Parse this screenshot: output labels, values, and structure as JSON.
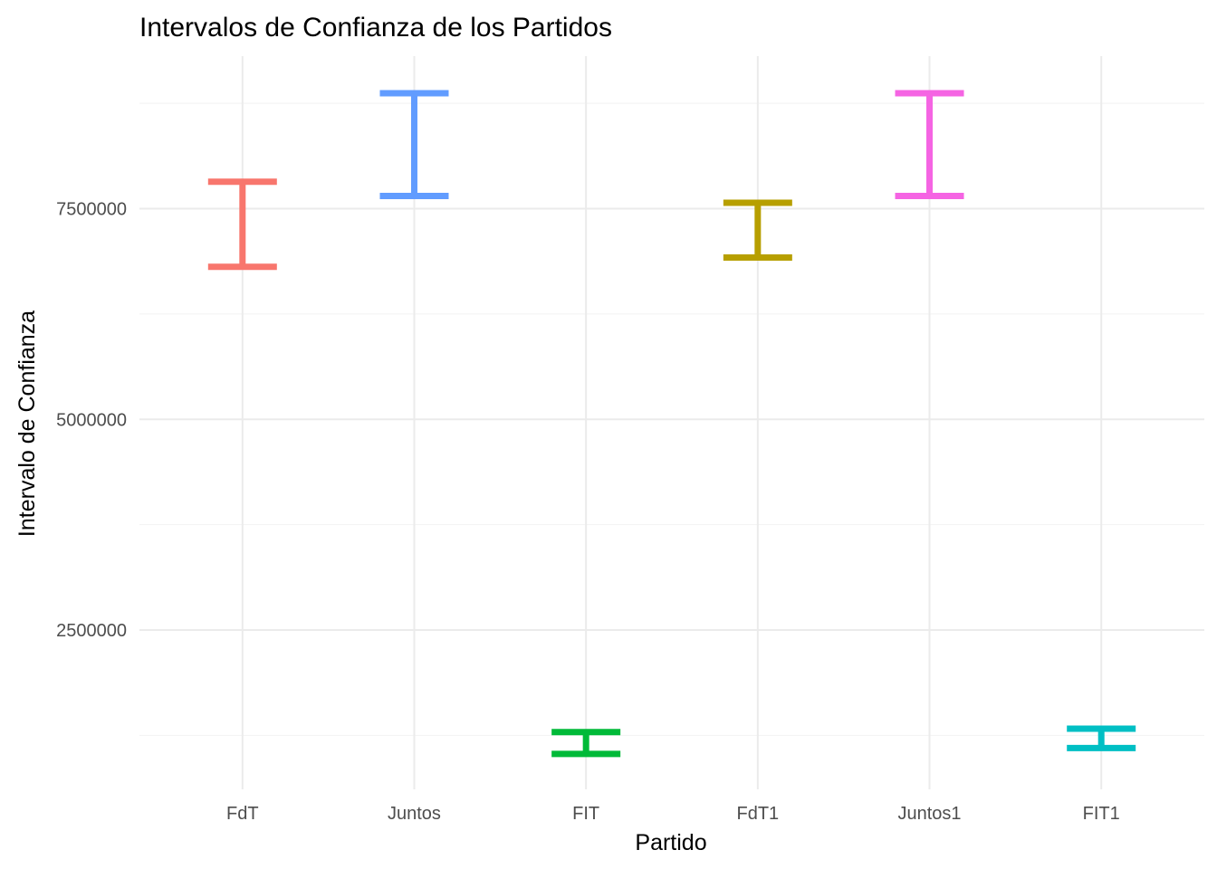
{
  "chart_data": {
    "type": "errorbar",
    "title": "Intervalos de Confianza de los Partidos",
    "xlabel": "Partido",
    "ylabel": "Intervalo de Confianza",
    "categories": [
      "FdT",
      "Juntos",
      "FIT",
      "FdT1",
      "Juntos1",
      "FIT1"
    ],
    "intervals": [
      {
        "category": "FdT",
        "lower": 6810000,
        "upper": 7820000,
        "color": "#F8766D"
      },
      {
        "category": "Juntos",
        "lower": 7650000,
        "upper": 8870000,
        "color": "#619CFF"
      },
      {
        "category": "FIT",
        "lower": 1030000,
        "upper": 1290000,
        "color": "#00BA38"
      },
      {
        "category": "FdT1",
        "lower": 6920000,
        "upper": 7570000,
        "color": "#B79F00"
      },
      {
        "category": "Juntos1",
        "lower": 7650000,
        "upper": 8870000,
        "color": "#F564E3"
      },
      {
        "category": "FIT1",
        "lower": 1100000,
        "upper": 1330000,
        "color": "#00BFC4"
      }
    ],
    "y_ticks": [
      2500000,
      5000000,
      7500000
    ],
    "y_tick_labels": [
      "2500000",
      "5000000",
      "7500000"
    ],
    "ylim": [
      610000,
      9310000
    ],
    "grid": true,
    "legend": "none"
  }
}
